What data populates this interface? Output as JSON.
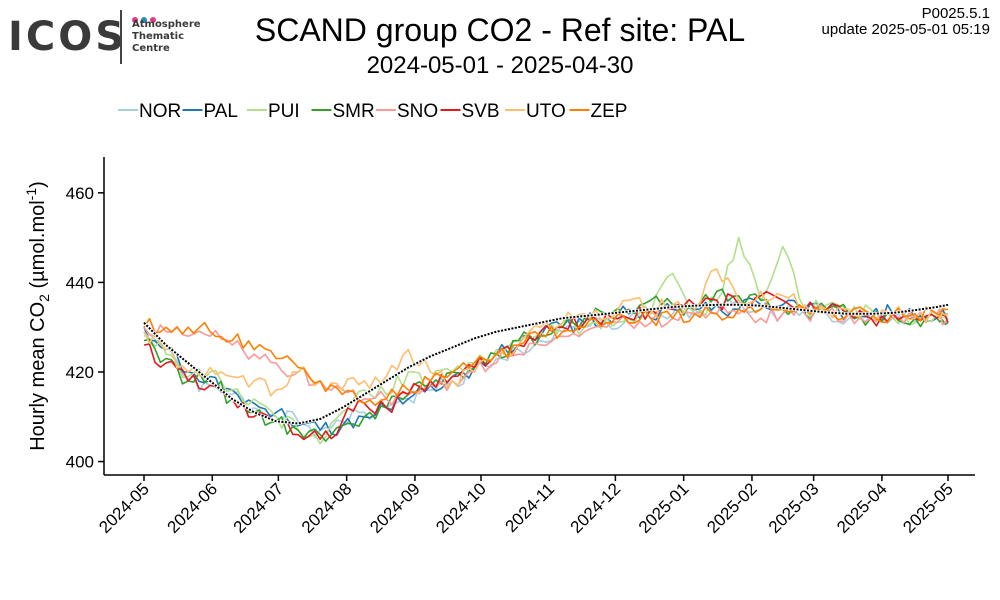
{
  "logo": {
    "word": "ICOS",
    "line1": "Atmosphere",
    "line2": "Thematic",
    "line3": "Centre",
    "dot_colors": [
      "#e43a86",
      "#2e86c1",
      "#e43a86"
    ]
  },
  "header": {
    "title": "SCAND group CO2 - Ref site: PAL",
    "subtitle": "2024-05-01 - 2025-04-30",
    "version": "P0025.5.1",
    "update": "update  2025-05-01 05:19"
  },
  "chart_data": {
    "type": "line",
    "ylabel_main": "Hourly mean  CO",
    "ylabel_sub": "2",
    "ylabel_unit": " (µmol.mol",
    "ylabel_sup": "-1",
    "ylabel_end": ")",
    "ylim": [
      397,
      468
    ],
    "yticks": [
      400,
      420,
      440,
      460
    ],
    "xlim": [
      0,
      365
    ],
    "xticks": [
      {
        "label": "2024-05",
        "day": 0
      },
      {
        "label": "2024-06",
        "day": 31
      },
      {
        "label": "2024-07",
        "day": 61
      },
      {
        "label": "2024-08",
        "day": 92
      },
      {
        "label": "2024-09",
        "day": 123
      },
      {
        "label": "2024-10",
        "day": 153
      },
      {
        "label": "2024-11",
        "day": 184
      },
      {
        "label": "2024-12",
        "day": 214
      },
      {
        "label": "2025-01",
        "day": 245
      },
      {
        "label": "2025-02",
        "day": 276
      },
      {
        "label": "2025-03",
        "day": 304
      },
      {
        "label": "2025-04",
        "day": 335
      },
      {
        "label": "2025-05",
        "day": 365
      }
    ],
    "legend_position": "top-left",
    "grid": false,
    "x": [
      0,
      10,
      20,
      30,
      40,
      50,
      60,
      70,
      80,
      90,
      100,
      110,
      120,
      130,
      140,
      150,
      160,
      170,
      180,
      190,
      200,
      210,
      220,
      230,
      240,
      250,
      260,
      270,
      280,
      290,
      300,
      310,
      320,
      330,
      340,
      350,
      360,
      365
    ],
    "series": [
      {
        "name": "NOR",
        "color": "#a6cee3",
        "values": [
          428,
          426,
          418,
          417,
          415,
          412,
          410,
          409,
          407,
          409,
          411,
          412,
          414,
          416,
          418,
          420,
          423,
          425,
          427,
          429,
          430,
          431,
          432,
          433,
          433,
          434,
          435,
          436,
          434,
          433,
          434,
          433,
          432,
          433,
          432,
          431,
          433,
          432
        ]
      },
      {
        "name": "PAL",
        "color": "#1f78b4",
        "values": [
          430,
          425,
          420,
          419,
          416,
          413,
          411,
          408,
          407,
          408,
          410,
          412,
          414,
          417,
          419,
          421,
          424,
          426,
          428,
          430,
          431,
          432,
          433,
          432,
          434,
          434,
          435,
          434,
          435,
          435,
          433,
          434,
          433,
          433,
          433,
          432,
          432,
          433
        ]
      },
      {
        "name": "PUI",
        "color": "#b2df8a",
        "values": [
          429,
          424,
          419,
          420,
          416,
          414,
          410,
          407,
          404,
          411,
          416,
          415,
          420,
          418,
          420,
          422,
          425,
          427,
          429,
          431,
          430,
          432,
          432,
          433,
          442,
          433,
          436,
          450,
          436,
          448,
          434,
          435,
          433,
          434,
          432,
          431,
          433,
          433
        ]
      },
      {
        "name": "SMR",
        "color": "#33a02c",
        "values": [
          427,
          423,
          418,
          418,
          414,
          411,
          409,
          407,
          406,
          408,
          410,
          412,
          415,
          417,
          420,
          421,
          424,
          427,
          428,
          430,
          432,
          433,
          434,
          436,
          435,
          434,
          438,
          437,
          436,
          434,
          433,
          434,
          433,
          432,
          433,
          432,
          432,
          431
        ]
      },
      {
        "name": "SNO",
        "color": "#fb9a99",
        "values": [
          430,
          429,
          428,
          428,
          426,
          424,
          422,
          420,
          418,
          416,
          414,
          414,
          415,
          417,
          418,
          420,
          422,
          424,
          426,
          428,
          429,
          430,
          431,
          431,
          432,
          433,
          433,
          433,
          432,
          433,
          433,
          433,
          433,
          432,
          432,
          432,
          433,
          432
        ]
      },
      {
        "name": "SVB",
        "color": "#e31a1c",
        "values": [
          426,
          422,
          418,
          417,
          414,
          410,
          409,
          406,
          405,
          409,
          413,
          412,
          415,
          418,
          419,
          421,
          424,
          426,
          429,
          430,
          431,
          433,
          432,
          434,
          434,
          435,
          436,
          435,
          437,
          436,
          434,
          434,
          433,
          432,
          433,
          432,
          432,
          431
        ]
      },
      {
        "name": "UTO",
        "color": "#fdbf6f",
        "values": [
          429,
          425,
          420,
          421,
          419,
          418,
          416,
          420,
          418,
          416,
          418,
          419,
          425,
          420,
          418,
          420,
          424,
          426,
          430,
          431,
          433,
          432,
          436,
          434,
          435,
          434,
          443,
          436,
          438,
          437,
          435,
          434,
          434,
          433,
          433,
          432,
          433,
          433
        ]
      },
      {
        "name": "ZEP",
        "color": "#ff7f00",
        "values": [
          430,
          430,
          430,
          429,
          427,
          425,
          423,
          421,
          418,
          415,
          413,
          414,
          416,
          418,
          420,
          422,
          424,
          426,
          428,
          429,
          430,
          431,
          431,
          432,
          432,
          433,
          433,
          434,
          434,
          434,
          434,
          434,
          433,
          433,
          433,
          433,
          433,
          434
        ]
      }
    ],
    "reference_curve": {
      "color": "#000000",
      "values": [
        431,
        426,
        422,
        418,
        414,
        411,
        409,
        408.5,
        409.5,
        412,
        415,
        418,
        421,
        423.5,
        425.5,
        427.5,
        429,
        430,
        431,
        432,
        432.5,
        433,
        433.5,
        434,
        434.5,
        434.8,
        435,
        435,
        434.8,
        434.3,
        433.8,
        433.3,
        433,
        433,
        433.2,
        433.8,
        434.5,
        435
      ]
    }
  }
}
